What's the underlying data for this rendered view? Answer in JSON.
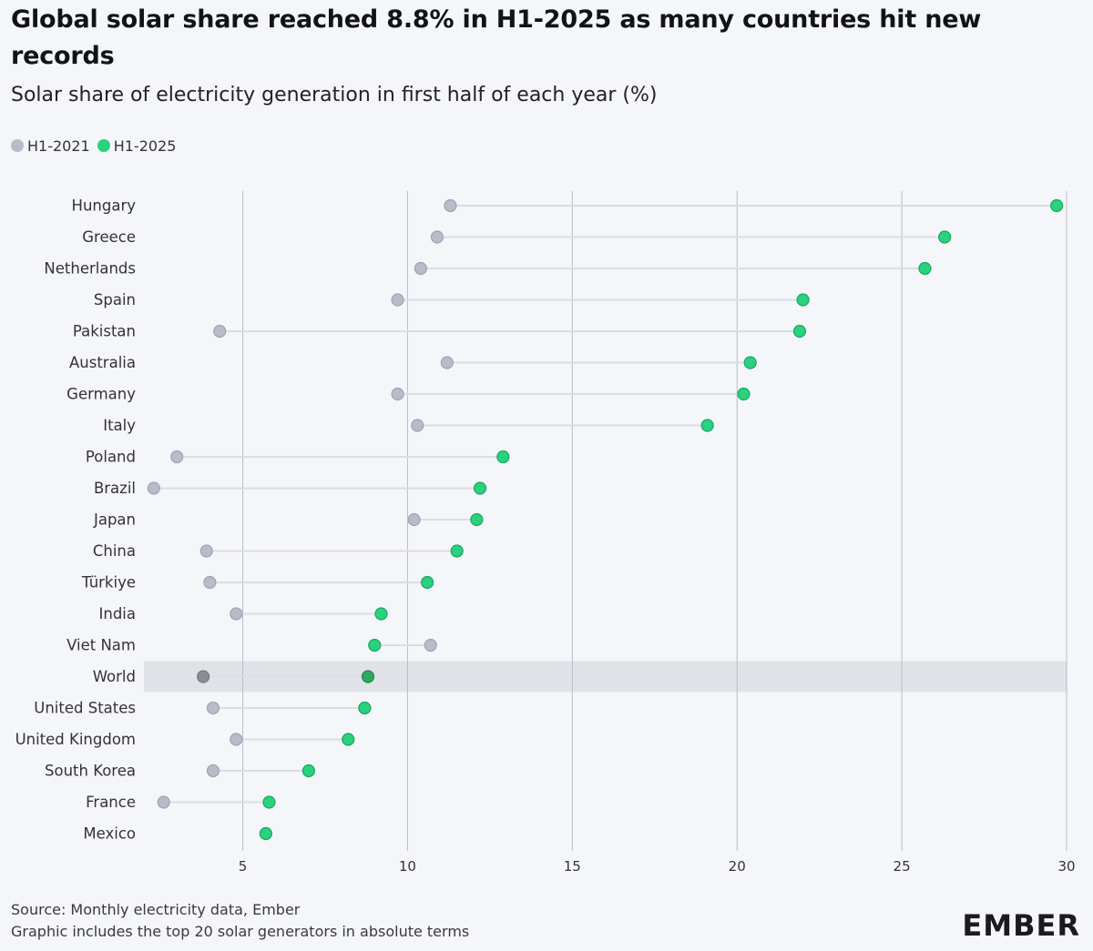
{
  "title": "Global solar share reached 8.8% in H1-2025 as many countries hit new records",
  "subtitle": "Solar share of electricity generation in first half of each year (%)",
  "legend": [
    {
      "label": "H1-2021",
      "color": "#b8bcc9"
    },
    {
      "label": "H1-2025",
      "color": "#2ad17e"
    }
  ],
  "footer": {
    "source": "Source: Monthly electricity data, Ember",
    "note": "Graphic includes the top 20 solar generators in absolute terms"
  },
  "logo": "EMBER",
  "colors": {
    "h1_2021": "#b8bcc9",
    "h1_2025": "#2ad17e",
    "connector": "#dcdde3",
    "gridline": "#b9bcc6",
    "highlight_band": "#e1e2e7"
  },
  "chart_data": {
    "type": "dumbbell",
    "xlim": [
      2,
      30
    ],
    "x_ticks": [
      "5",
      "10",
      "15",
      "20",
      "25",
      "30"
    ],
    "highlighted_category": "World",
    "categories": [
      "Hungary",
      "Greece",
      "Netherlands",
      "Spain",
      "Pakistan",
      "Australia",
      "Germany",
      "Italy",
      "Poland",
      "Brazil",
      "Japan",
      "China",
      "Türkiye",
      "India",
      "Viet Nam",
      "World",
      "United States",
      "United Kingdom",
      "South Korea",
      "France",
      "Mexico"
    ],
    "series": [
      {
        "name": "H1-2021",
        "values": [
          11.3,
          10.9,
          10.4,
          9.7,
          4.3,
          11.2,
          9.7,
          10.3,
          3.0,
          2.3,
          10.2,
          3.9,
          4.0,
          4.8,
          10.7,
          3.8,
          4.1,
          4.8,
          4.1,
          2.6,
          5.7
        ]
      },
      {
        "name": "H1-2025",
        "values": [
          29.7,
          26.3,
          25.7,
          22.0,
          21.9,
          20.4,
          20.2,
          19.1,
          12.9,
          12.2,
          12.1,
          11.5,
          10.6,
          9.2,
          9.0,
          8.8,
          8.7,
          8.2,
          7.0,
          5.8,
          5.7
        ]
      }
    ]
  }
}
